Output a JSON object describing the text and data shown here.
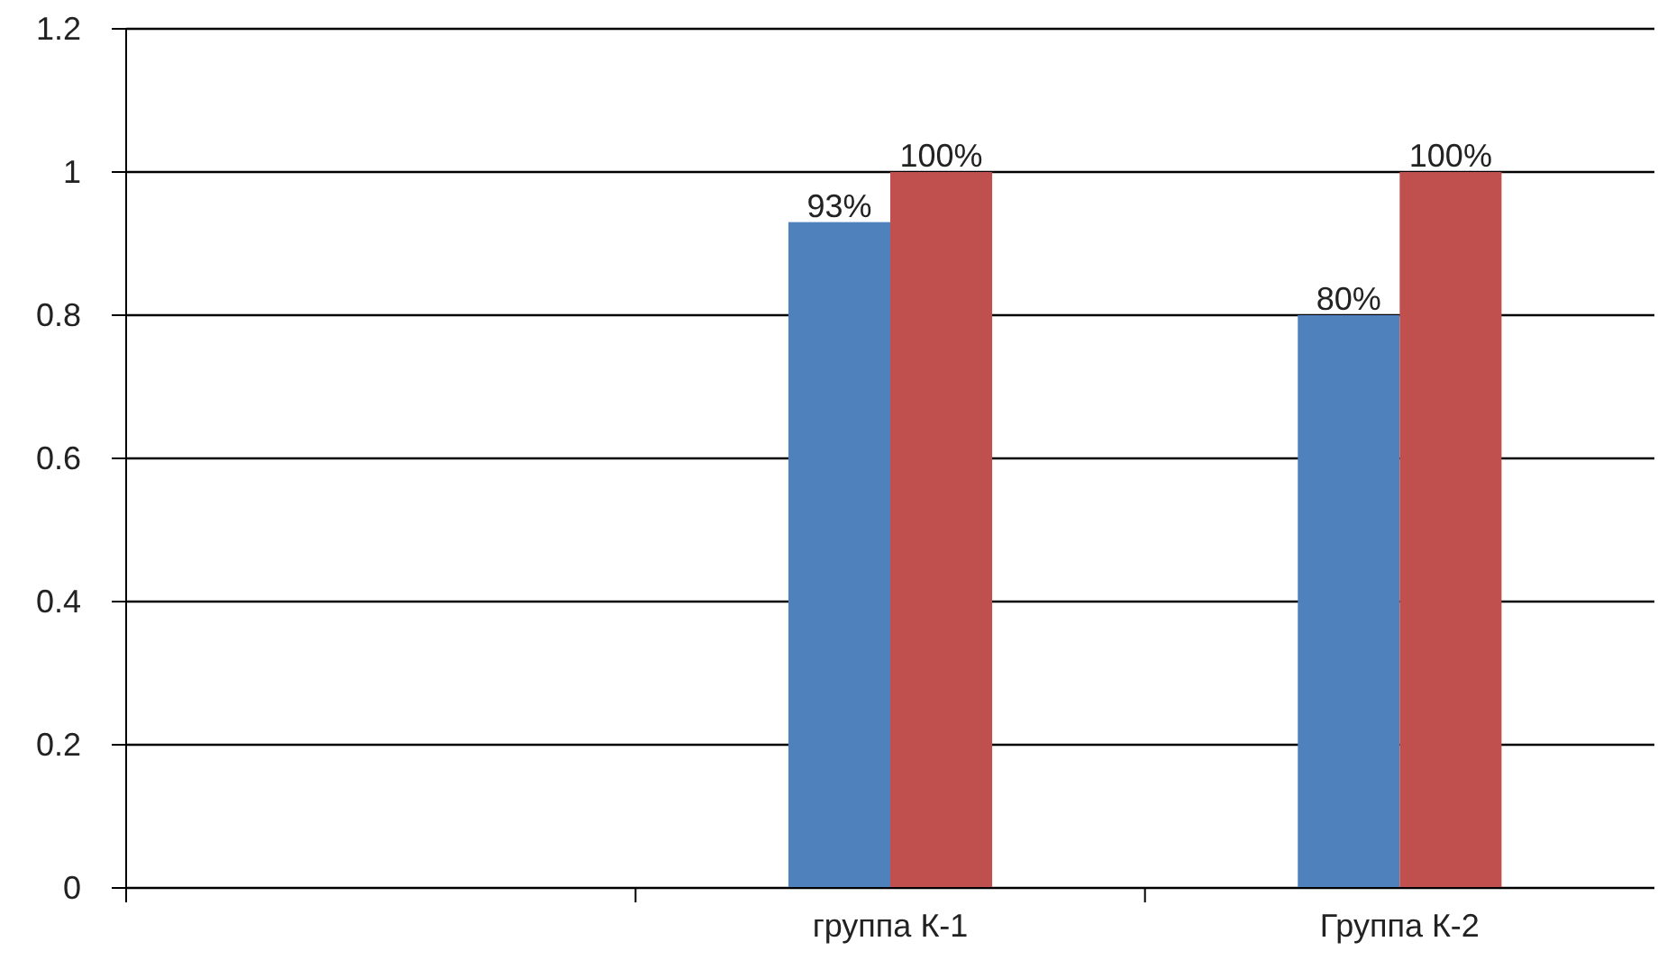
{
  "chart_data": {
    "type": "bar",
    "categories": [
      null,
      "группа К-1",
      "Группа К-2"
    ],
    "series": [
      {
        "color": "#4f81bd",
        "values": [
          null,
          0.93,
          0.8
        ],
        "value_labels": [
          null,
          "93%",
          "80%"
        ]
      },
      {
        "color": "#c0504d",
        "values": [
          null,
          1,
          1
        ],
        "value_labels": [
          null,
          "100%",
          "100%"
        ]
      }
    ],
    "ylim": [
      0,
      1.2
    ],
    "yticks": [
      0,
      0.2,
      0.4,
      0.6,
      0.8,
      1,
      {
        "value": 1.2,
        "label": "1.2"
      }
    ],
    "grid": "y"
  }
}
